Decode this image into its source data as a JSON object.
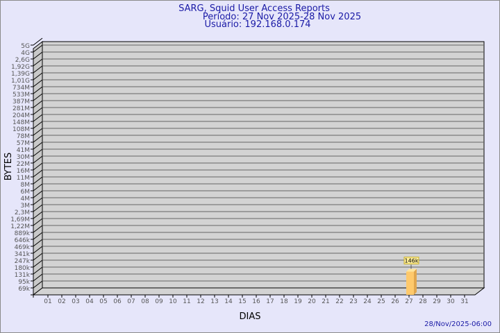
{
  "title_lines": [
    "SARG, Squid User Access Reports",
    "Período: 27 Nov 2025-28 Nov 2025",
    "Usuário: 192.168.0.174"
  ],
  "footer_timestamp": "28/Nov/2025-06:00",
  "colors": {
    "background": "#e6e6fa",
    "plot": "#d3d3d3",
    "title": "#1a1aa6",
    "bar_front": "#ffc96b",
    "bar_side": "#e0a64e",
    "bar_top": "#ffe59c",
    "label_box": "#ffee99"
  },
  "chart_data": {
    "type": "bar",
    "xlabel": "DIAS",
    "ylabel": "BYTES",
    "x_ticks": [
      "01",
      "02",
      "03",
      "04",
      "05",
      "06",
      "07",
      "08",
      "09",
      "10",
      "11",
      "12",
      "13",
      "14",
      "15",
      "16",
      "17",
      "18",
      "19",
      "20",
      "21",
      "22",
      "23",
      "24",
      "25",
      "26",
      "27",
      "28",
      "29",
      "30",
      "31"
    ],
    "y_ticks": [
      "69k",
      "95k",
      "131k",
      "180k",
      "247k",
      "341k",
      "469k",
      "646k",
      "889k",
      "1,22M",
      "1,69M",
      "2,3M",
      "3M",
      "4M",
      "6M",
      "8M",
      "11M",
      "16M",
      "22M",
      "30M",
      "41M",
      "57M",
      "78M",
      "108M",
      "148M",
      "204M",
      "281M",
      "387M",
      "533M",
      "734M",
      "1,01G",
      "1,39G",
      "1,92G",
      "2,6G",
      "4G",
      "5G"
    ],
    "y_scale": "log",
    "grid": true,
    "bars": [
      {
        "x": "27",
        "value": 146000,
        "label": "146k"
      }
    ]
  }
}
